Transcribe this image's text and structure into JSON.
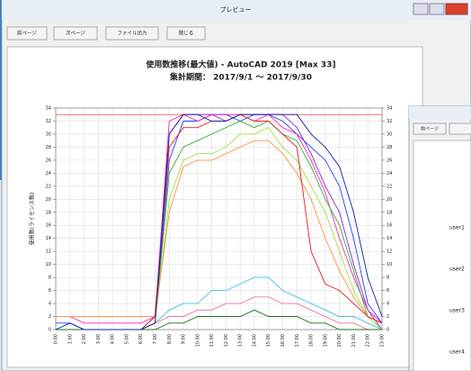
{
  "window": {
    "title": "プレビュー",
    "buttons": [
      "前ページ",
      "次ページ",
      "ファイル出力",
      "閉じる"
    ]
  },
  "second_window": {
    "buttons": [
      "前ページ"
    ],
    "rows": [
      "user1",
      "user2",
      "user3",
      "user4"
    ]
  },
  "chart_data": {
    "type": "line",
    "title": "使用数推移(最大値) - AutoCAD 2019 [Max 33]",
    "subtitle": "集計期間： 2017/9/1 ～ 2017/9/30",
    "y_label": "使用数(ライセンス数)",
    "categories": [
      "0:00",
      "1:00",
      "2:00",
      "3:00",
      "4:00",
      "5:00",
      "6:00",
      "7:00",
      "8:00",
      "9:00",
      "10:00",
      "11:00",
      "12:00",
      "13:00",
      "14:00",
      "15:00",
      "16:00",
      "17:00",
      "18:00",
      "19:00",
      "20:00",
      "21:00",
      "22:00",
      "23:00"
    ],
    "ylim": [
      0,
      34
    ],
    "yticks": [
      0,
      2,
      4,
      6,
      8,
      10,
      12,
      14,
      16,
      18,
      20,
      22,
      24,
      26,
      28,
      30,
      32,
      34
    ],
    "grid": true,
    "max_line": 33,
    "max_line_color": "#ff4040",
    "series": [
      {
        "color": "#2040ff",
        "values": [
          1,
          1,
          0,
          0,
          0,
          0,
          0,
          1,
          26,
          32,
          32,
          33,
          33,
          32,
          33,
          33,
          32,
          30,
          28,
          26,
          22,
          14,
          4,
          1
        ]
      },
      {
        "color": "#9020d0",
        "values": [
          0,
          0,
          0,
          0,
          0,
          0,
          0,
          2,
          30,
          33,
          33,
          33,
          32,
          33,
          33,
          33,
          33,
          31,
          27,
          22,
          18,
          10,
          3,
          0
        ]
      },
      {
        "color": "#ff20c0",
        "values": [
          2,
          2,
          1,
          1,
          1,
          1,
          1,
          2,
          32,
          33,
          32,
          33,
          33,
          33,
          32,
          33,
          31,
          30,
          26,
          21,
          14,
          8,
          3,
          1
        ]
      },
      {
        "color": "#30b030",
        "values": [
          0,
          0,
          0,
          0,
          0,
          0,
          0,
          1,
          24,
          28,
          29,
          30,
          31,
          32,
          31,
          32,
          30,
          29,
          25,
          20,
          16,
          9,
          2,
          0
        ]
      },
      {
        "color": "#a0e040",
        "values": [
          0,
          0,
          0,
          0,
          0,
          0,
          0,
          1,
          20,
          26,
          27,
          27,
          28,
          30,
          30,
          31,
          28,
          26,
          22,
          18,
          12,
          6,
          2,
          0
        ]
      },
      {
        "color": "#ff9040",
        "values": [
          2,
          2,
          2,
          2,
          2,
          2,
          2,
          2,
          18,
          25,
          26,
          26,
          27,
          28,
          29,
          29,
          27,
          24,
          20,
          14,
          9,
          5,
          2,
          1
        ]
      },
      {
        "color": "#e02020",
        "values": [
          0,
          0,
          0,
          0,
          0,
          0,
          0,
          2,
          28,
          31,
          31,
          32,
          32,
          33,
          32,
          32,
          30,
          28,
          12,
          7,
          6,
          4,
          2,
          1
        ]
      },
      {
        "color": "#40c0e0",
        "values": [
          0,
          0,
          0,
          0,
          0,
          0,
          0,
          1,
          3,
          4,
          4,
          6,
          6,
          7,
          8,
          8,
          6,
          5,
          4,
          3,
          2,
          2,
          1,
          0
        ]
      },
      {
        "color": "#f070a0",
        "values": [
          0,
          0,
          0,
          0,
          0,
          0,
          0,
          1,
          2,
          2,
          3,
          3,
          4,
          4,
          5,
          5,
          4,
          4,
          3,
          2,
          1,
          1,
          0,
          0
        ]
      },
      {
        "color": "#207020",
        "values": [
          0,
          0,
          0,
          0,
          0,
          0,
          0,
          0,
          1,
          1,
          2,
          2,
          2,
          2,
          3,
          2,
          2,
          2,
          1,
          1,
          0,
          0,
          0,
          0
        ]
      },
      {
        "color": "#1020a0",
        "values": [
          0,
          1,
          0,
          0,
          0,
          0,
          0,
          1,
          30,
          33,
          33,
          32,
          32,
          33,
          33,
          33,
          33,
          33,
          30,
          28,
          25,
          18,
          8,
          2
        ]
      }
    ]
  }
}
